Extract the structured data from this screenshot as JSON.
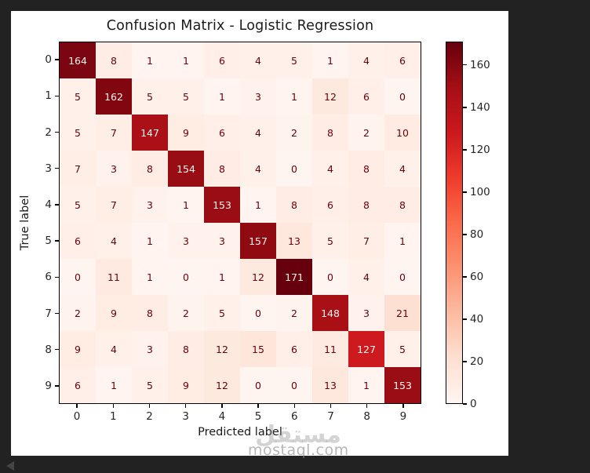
{
  "page": {
    "background_color": "#222222",
    "figure_background_color": "#ffffff"
  },
  "chart_data": {
    "type": "heatmap",
    "title": "Confusion Matrix - Logistic Regression",
    "xlabel": "Predicted label",
    "ylabel": "True label",
    "x_tick_labels": [
      "0",
      "1",
      "2",
      "3",
      "4",
      "5",
      "6",
      "7",
      "8",
      "9"
    ],
    "y_tick_labels": [
      "0",
      "1",
      "2",
      "3",
      "4",
      "5",
      "6",
      "7",
      "8",
      "9"
    ],
    "matrix": [
      [
        164,
        8,
        1,
        1,
        6,
        4,
        5,
        1,
        4,
        6
      ],
      [
        5,
        162,
        5,
        5,
        1,
        3,
        1,
        12,
        6,
        0
      ],
      [
        5,
        7,
        147,
        9,
        6,
        4,
        2,
        8,
        2,
        10
      ],
      [
        7,
        3,
        8,
        154,
        8,
        4,
        0,
        4,
        8,
        4
      ],
      [
        5,
        7,
        3,
        1,
        153,
        1,
        8,
        6,
        8,
        8
      ],
      [
        6,
        4,
        1,
        3,
        3,
        157,
        13,
        5,
        7,
        1
      ],
      [
        0,
        11,
        1,
        0,
        1,
        12,
        171,
        0,
        4,
        0
      ],
      [
        2,
        9,
        8,
        2,
        5,
        0,
        2,
        148,
        3,
        21
      ],
      [
        9,
        4,
        3,
        8,
        12,
        15,
        6,
        11,
        127,
        5
      ],
      [
        6,
        1,
        5,
        9,
        12,
        0,
        0,
        13,
        1,
        153
      ]
    ],
    "vmin": 0,
    "vmax": 171,
    "colormap": "Reds",
    "colormap_anchors": [
      [
        0.0,
        [
          255,
          245,
          240
        ]
      ],
      [
        0.125,
        [
          254,
          224,
          210
        ]
      ],
      [
        0.25,
        [
          252,
          187,
          161
        ]
      ],
      [
        0.375,
        [
          252,
          146,
          114
        ]
      ],
      [
        0.5,
        [
          251,
          106,
          74
        ]
      ],
      [
        0.625,
        [
          239,
          59,
          44
        ]
      ],
      [
        0.75,
        [
          203,
          24,
          29
        ]
      ],
      [
        0.875,
        [
          165,
          15,
          21
        ]
      ],
      [
        1.0,
        [
          103,
          0,
          13
        ]
      ]
    ],
    "colorbar_ticks": [
      0,
      20,
      40,
      60,
      80,
      100,
      120,
      140,
      160
    ],
    "cell_text_color_low": "#67000d",
    "cell_text_color_high": "#fff5f0",
    "grid": false,
    "legend_position": "right-colorbar"
  },
  "watermark": {
    "logo_text": "مستقل",
    "site_text": "mostaql.com"
  }
}
